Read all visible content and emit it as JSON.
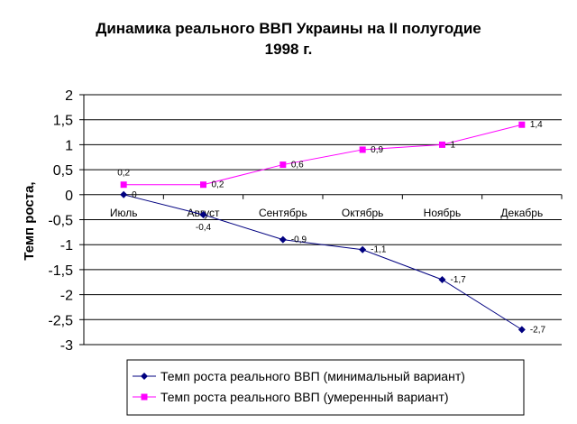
{
  "chart_data": {
    "type": "line",
    "title_lines": [
      "Динамика реального ВВП Украины на II полугодие",
      "1998 г."
    ],
    "ylabel": "Темп роста,",
    "xlabel": "",
    "categories": [
      "Июль",
      "Август",
      "Сентябрь",
      "Октябрь",
      "Ноябрь",
      "Декабрь"
    ],
    "ylim": [
      -3,
      2
    ],
    "yticks": [
      "2",
      "1,5",
      "1",
      "0,5",
      "0",
      "-0,5",
      "-1",
      "-1,5",
      "-2",
      "-2,5",
      "-3"
    ],
    "ytick_values": [
      2,
      1.5,
      1,
      0.5,
      0,
      -0.5,
      -1,
      -1.5,
      -2,
      -2.5,
      -3
    ],
    "grid": true,
    "legend_position": "bottom",
    "series": [
      {
        "name": "Темп роста реального ВВП (минимальный вариант)",
        "values": [
          0,
          -0.4,
          -0.9,
          -1.1,
          -1.7,
          -2.7
        ],
        "labels": [
          "0",
          "-0,4",
          "-0,9",
          "-1,1",
          "-1,7",
          "-2,7"
        ],
        "color": "#000080",
        "marker": "diamond"
      },
      {
        "name": "Темп роста реального ВВП (умеренный вариант)",
        "values": [
          0.2,
          0.2,
          0.6,
          0.9,
          1,
          1.4
        ],
        "labels": [
          "0,2",
          "0,2",
          "0,6",
          "0,9",
          "1",
          "1,4"
        ],
        "color": "#ff00ff",
        "marker": "square"
      }
    ]
  }
}
